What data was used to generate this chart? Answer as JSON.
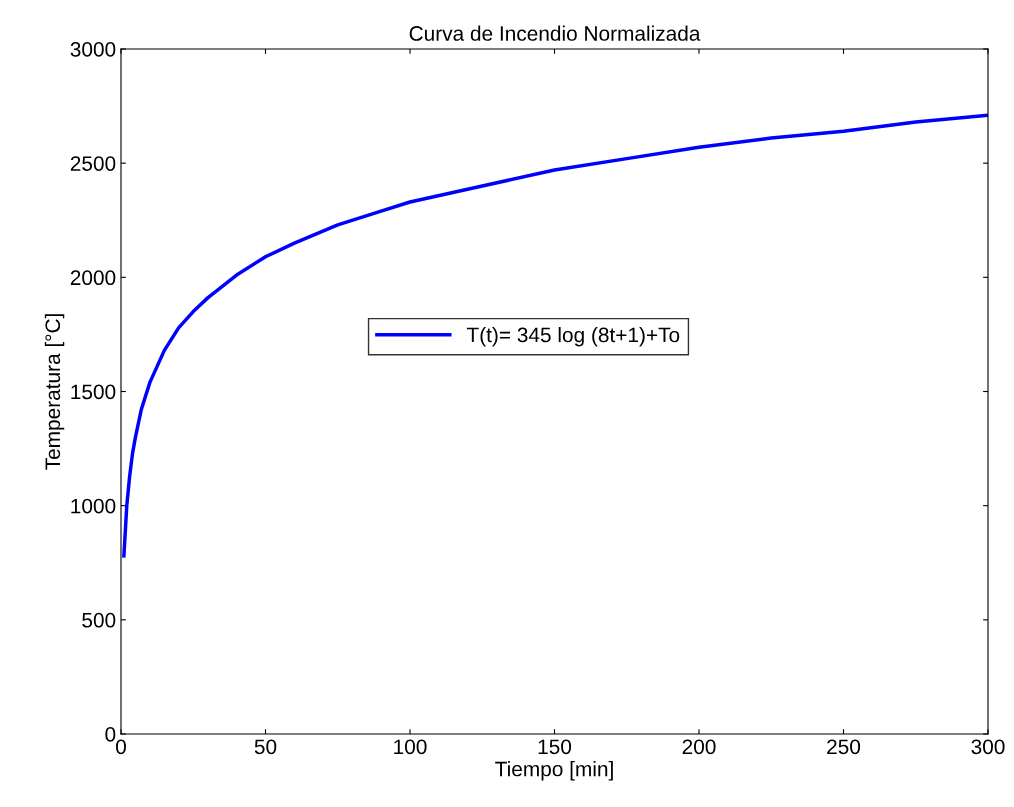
{
  "chart_data": {
    "type": "line",
    "title": "Curva de Incendio Normalizada",
    "xlabel": "Tiempo [min]",
    "ylabel": "Temperatura [°C]",
    "x": [
      1,
      2,
      3,
      4,
      5,
      7,
      10,
      15,
      20,
      25,
      30,
      40,
      50,
      60,
      75,
      90,
      100,
      125,
      150,
      175,
      200,
      225,
      250,
      275,
      300
    ],
    "series": [
      {
        "name": "T(t)= 345 log (8t+1)+To",
        "color": "#0000ff",
        "values": [
          780,
          1000,
          1130,
          1230,
          1300,
          1420,
          1540,
          1680,
          1780,
          1850,
          1910,
          2010,
          2090,
          2150,
          2230,
          2290,
          2330,
          2400,
          2470,
          2520,
          2570,
          2610,
          2640,
          2680,
          2710
        ]
      }
    ],
    "xlim": [
      0,
      300
    ],
    "ylim": [
      0,
      3000
    ],
    "xticks": [
      0,
      50,
      100,
      150,
      200,
      250,
      300
    ],
    "yticks": [
      0,
      500,
      1000,
      1500,
      2000,
      2500,
      3000
    ],
    "legend": "center",
    "grid": false,
    "line_style": "solid",
    "marker": "none"
  }
}
